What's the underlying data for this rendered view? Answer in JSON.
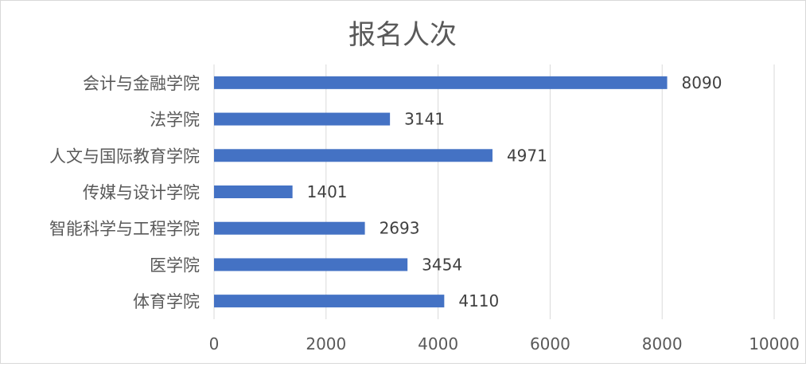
{
  "chart_data": {
    "type": "bar",
    "orientation": "horizontal",
    "title": "报名人次",
    "categories": [
      "会计与金融学院",
      "法学院",
      "人文与国际教育学院",
      "传媒与设计学院",
      "智能科学与工程学院",
      "医学院",
      "体育学院"
    ],
    "values": [
      8090,
      3141,
      4971,
      1401,
      2693,
      3454,
      4110
    ],
    "xlim": [
      0,
      10000
    ],
    "xticks": [
      0,
      2000,
      4000,
      6000,
      8000,
      10000
    ],
    "grid": "vertical",
    "legend": "none",
    "bar_color": "#4472C4",
    "data_labels": true
  }
}
